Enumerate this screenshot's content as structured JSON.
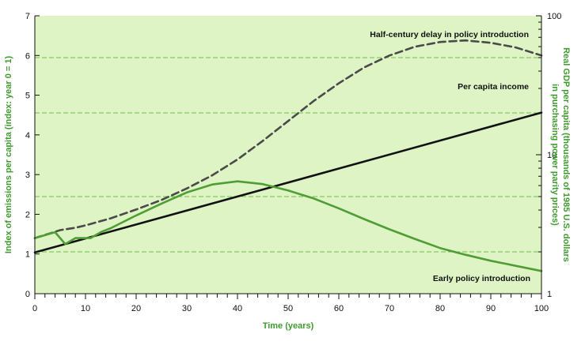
{
  "chart_data": {
    "type": "line",
    "title": "",
    "xlabel": "Time (years)",
    "ylabel_left": "Index of emissions per capita (index: year 0 = 1)",
    "ylabel_right": "Real GDP per capita (thousands of 1985 U.S. dollars in purchasing power parity prices)",
    "xlim": [
      0,
      100
    ],
    "ylim_left": [
      0,
      7
    ],
    "ylim_right": [
      1,
      100
    ],
    "right_axis_scale": "log",
    "x_ticks": [
      0,
      10,
      20,
      30,
      40,
      50,
      60,
      70,
      80,
      90,
      100
    ],
    "y_left_ticks": [
      0,
      1,
      2,
      3,
      4,
      5,
      6,
      7
    ],
    "y_right_ticks": [
      1,
      10,
      100
    ],
    "grid": "horizontal dashed at right-axis log minors",
    "gridlines_right": [
      2,
      5,
      20,
      50
    ],
    "background_color": "#def4c4",
    "axis_title_color": "#3f9b2e",
    "series": [
      {
        "name": "Half-century delay in policy introduction",
        "axis": "left",
        "style": "dashed",
        "color": "#4a4a4a",
        "x": [
          0,
          3,
          5,
          8,
          10,
          15,
          20,
          25,
          30,
          35,
          40,
          45,
          50,
          55,
          60,
          65,
          70,
          75,
          80,
          85,
          90,
          95,
          100
        ],
        "y": [
          1.4,
          1.52,
          1.6,
          1.66,
          1.72,
          1.9,
          2.12,
          2.36,
          2.65,
          2.98,
          3.38,
          3.85,
          4.35,
          4.85,
          5.3,
          5.7,
          6.0,
          6.22,
          6.34,
          6.38,
          6.32,
          6.2,
          6.0
        ]
      },
      {
        "name": "Per capita income",
        "axis": "right",
        "style": "solid",
        "color": "#111111",
        "x": [
          0,
          100
        ],
        "y": [
          1.98,
          20.1
        ]
      },
      {
        "name": "Early policy introduction",
        "axis": "left",
        "style": "solid",
        "color": "#4f9e35",
        "x": [
          0,
          4,
          6,
          8,
          10,
          11,
          13,
          15,
          20,
          25,
          30,
          35,
          40,
          45,
          50,
          55,
          60,
          65,
          70,
          75,
          80,
          85,
          90,
          95,
          100
        ],
        "y": [
          1.4,
          1.55,
          1.25,
          1.4,
          1.4,
          1.4,
          1.55,
          1.65,
          1.97,
          2.27,
          2.55,
          2.75,
          2.83,
          2.76,
          2.6,
          2.4,
          2.15,
          1.88,
          1.62,
          1.38,
          1.15,
          0.98,
          0.83,
          0.7,
          0.57
        ]
      }
    ],
    "annotations": [
      {
        "text": "Half-century delay in policy introduction",
        "series": 0
      },
      {
        "text": "Per capita income",
        "series": 1
      },
      {
        "text": "Early policy introduction",
        "series": 2
      }
    ]
  }
}
